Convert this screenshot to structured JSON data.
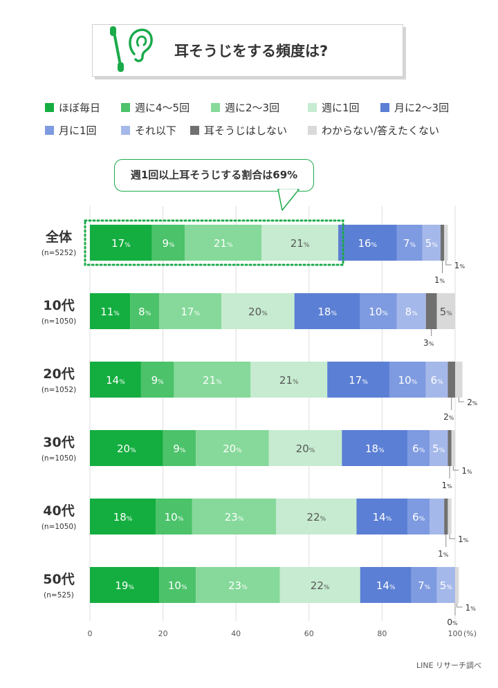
{
  "header": {
    "title": "耳そうじをする頻度は?",
    "icon": "ear-and-cotton-swab-icon"
  },
  "callout": {
    "text": "週1回以上耳そうじする割合は69%"
  },
  "source": "LINE リサーチ調べ",
  "colors": {
    "accent_green": "#1aaa4a",
    "gridline": "#dddddd"
  },
  "chart_data": {
    "type": "bar",
    "orientation": "horizontal",
    "stacked": true,
    "categories": [
      "全体",
      "10代",
      "20代",
      "30代",
      "40代",
      "50代"
    ],
    "sample_sizes": [
      "(n=5252)",
      "(n=1050)",
      "(n=1052)",
      "(n=1050)",
      "(n=1050)",
      "(n=525)"
    ],
    "series": [
      {
        "name": "ほぼ毎日",
        "color": "#14ae40",
        "values": [
          17,
          11,
          14,
          20,
          18,
          19
        ]
      },
      {
        "name": "週に4〜5回",
        "color": "#4cc26a",
        "values": [
          9,
          8,
          9,
          9,
          10,
          10
        ]
      },
      {
        "name": "週に2〜3回",
        "color": "#86d99a",
        "values": [
          21,
          17,
          21,
          20,
          23,
          23
        ]
      },
      {
        "name": "週に1回",
        "color": "#c6ebd0",
        "values": [
          21,
          20,
          21,
          20,
          22,
          22
        ]
      },
      {
        "name": "月に2〜3回",
        "color": "#5b7fd4",
        "values": [
          16,
          18,
          17,
          18,
          14,
          14
        ]
      },
      {
        "name": "月に1回",
        "color": "#7e9ae0",
        "values": [
          7,
          10,
          10,
          6,
          6,
          7
        ]
      },
      {
        "name": "それ以下",
        "color": "#a5b8ea",
        "values": [
          5,
          8,
          6,
          5,
          4,
          5
        ]
      },
      {
        "name": "耳そうじはしない",
        "color": "#707070",
        "values": [
          1,
          3,
          2,
          1,
          1,
          0
        ]
      },
      {
        "name": "わからない/答えたくない",
        "color": "#d9d9d9",
        "values": [
          1,
          5,
          2,
          1,
          1,
          1
        ]
      }
    ],
    "xlim": [
      0,
      100
    ],
    "xticks": [
      0,
      20,
      40,
      60,
      80,
      100
    ],
    "x_unit": "(%)",
    "value_unit": "%",
    "grid": true,
    "legend_position": "top",
    "highlight": {
      "row": 0,
      "series_upto": 3,
      "label": "週1回以上耳そうじする割合は69%"
    }
  }
}
